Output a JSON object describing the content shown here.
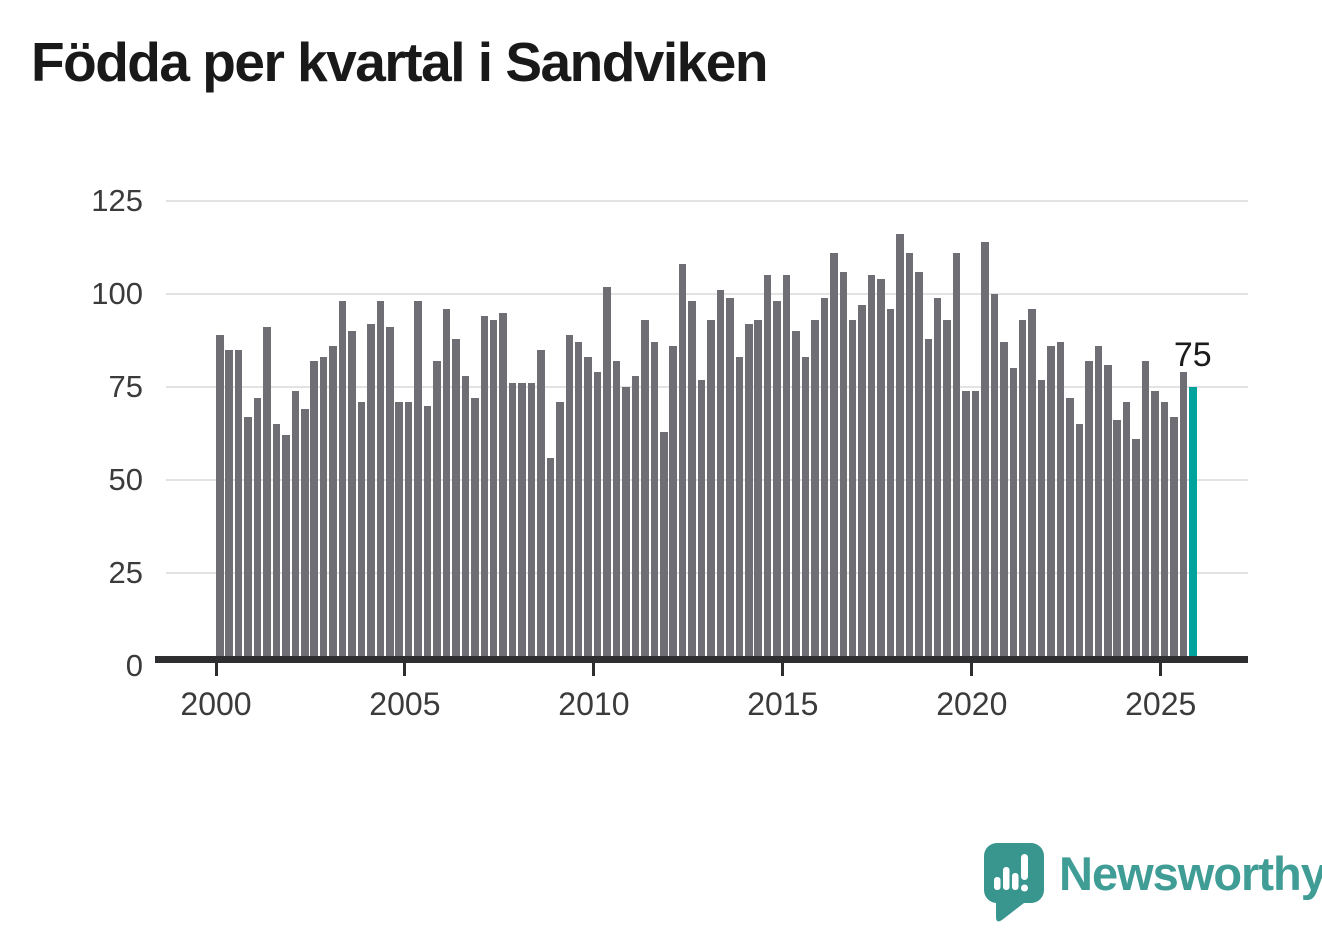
{
  "title": "Födda per kvartal i Sandviken",
  "annotation": {
    "label": "75"
  },
  "branding": {
    "name": "Newsworthy",
    "icon": "speech-bubble-bar-chart-exclamation-icon",
    "bubble_color": "#38968f",
    "text_color": "#3f9d96"
  },
  "chart_data": {
    "type": "bar",
    "title": "Födda per kvartal i Sandviken",
    "frequency": "quarterly",
    "x_start": "2000Q1",
    "x_end": "2025Q4",
    "x_tick_labels": [
      "2000",
      "2005",
      "2010",
      "2015",
      "2020",
      "2025"
    ],
    "y_ticks": [
      0,
      25,
      50,
      75,
      100,
      125
    ],
    "ylim": [
      0,
      125
    ],
    "grid": true,
    "legend": "none",
    "bar_color": "#6f6e74",
    "highlight": {
      "position": "last",
      "value": 75,
      "label": "75",
      "color": "#00a39b"
    },
    "values": [
      89,
      85,
      85,
      67,
      72,
      91,
      65,
      62,
      74,
      69,
      82,
      83,
      86,
      98,
      90,
      71,
      92,
      98,
      91,
      71,
      71,
      98,
      70,
      82,
      96,
      88,
      78,
      72,
      94,
      93,
      95,
      76,
      76,
      76,
      85,
      56,
      71,
      89,
      87,
      83,
      79,
      102,
      82,
      75,
      78,
      93,
      87,
      63,
      86,
      108,
      98,
      77,
      93,
      101,
      99,
      83,
      92,
      93,
      105,
      98,
      105,
      90,
      83,
      93,
      99,
      111,
      106,
      93,
      97,
      105,
      104,
      96,
      116,
      111,
      106,
      88,
      99,
      93,
      111,
      74,
      74,
      114,
      100,
      87,
      80,
      93,
      96,
      77,
      86,
      87,
      72,
      65,
      82,
      86,
      81,
      66,
      71,
      61,
      82,
      74,
      71,
      67,
      79,
      75
    ]
  }
}
